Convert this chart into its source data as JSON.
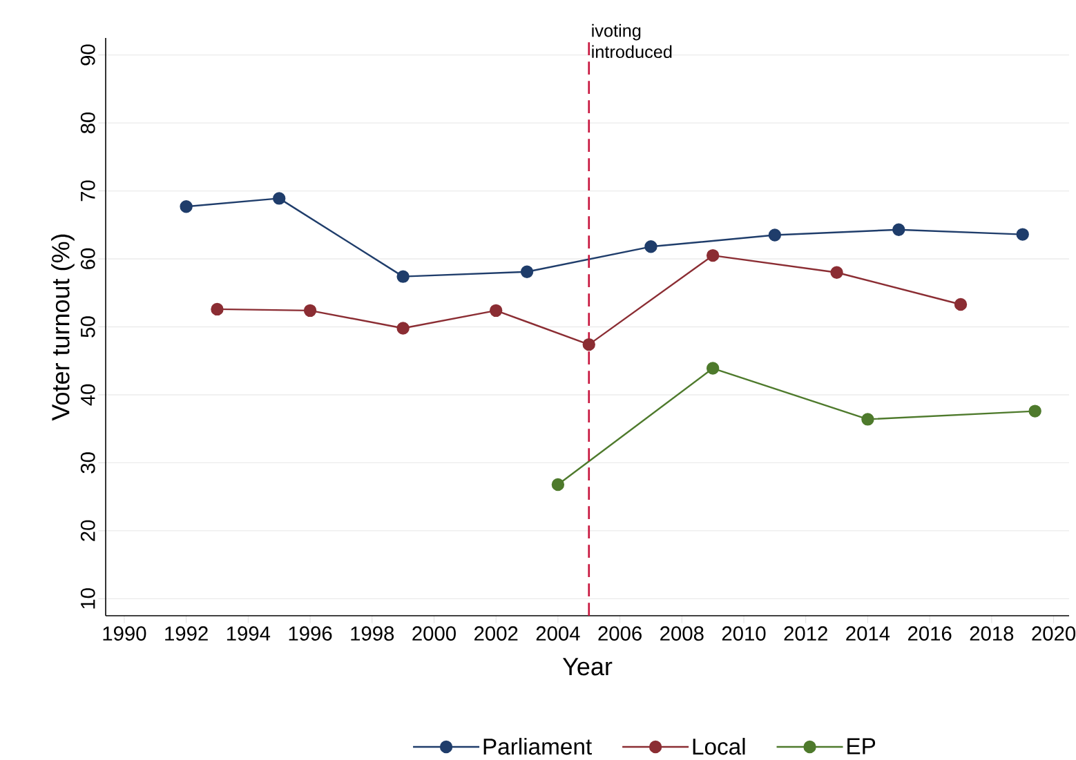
{
  "chart_data": {
    "type": "line",
    "xlabel": "Year",
    "ylabel": "Voter turnout (%)",
    "xlim": [
      1989.4,
      2020.5
    ],
    "ylim": [
      7.5,
      92.5
    ],
    "xticks": [
      1990,
      1992,
      1994,
      1996,
      1998,
      2000,
      2002,
      2004,
      2006,
      2008,
      2010,
      2012,
      2014,
      2016,
      2018,
      2020
    ],
    "yticks": [
      10,
      20,
      30,
      40,
      50,
      60,
      70,
      80,
      90
    ],
    "grid": "y",
    "legend": "bottom",
    "marker": "circle",
    "line_style": "solid",
    "series": [
      {
        "name": "Parliament",
        "color": "#1f3d6b",
        "x": [
          1992,
          1995,
          1999,
          2003,
          2007,
          2011,
          2015,
          2019
        ],
        "values": [
          67.7,
          68.9,
          57.4,
          58.1,
          61.8,
          63.5,
          64.3,
          63.6
        ]
      },
      {
        "name": "Local",
        "color": "#8b2d33",
        "x": [
          1993,
          1996,
          1999,
          2002,
          2005,
          2009,
          2013,
          2017
        ],
        "values": [
          52.6,
          52.4,
          49.8,
          52.4,
          47.4,
          60.5,
          58.0,
          53.3
        ]
      },
      {
        "name": "EP",
        "color": "#4e7a2c",
        "x": [
          2004,
          2009,
          2014,
          2019.4
        ],
        "values": [
          26.8,
          43.9,
          36.4,
          37.6
        ]
      }
    ],
    "ref_lines": [
      {
        "axis": "x",
        "value": 2005,
        "label": "ivoting introduced",
        "color": "#c8173f",
        "line_style": "dashed"
      }
    ]
  }
}
